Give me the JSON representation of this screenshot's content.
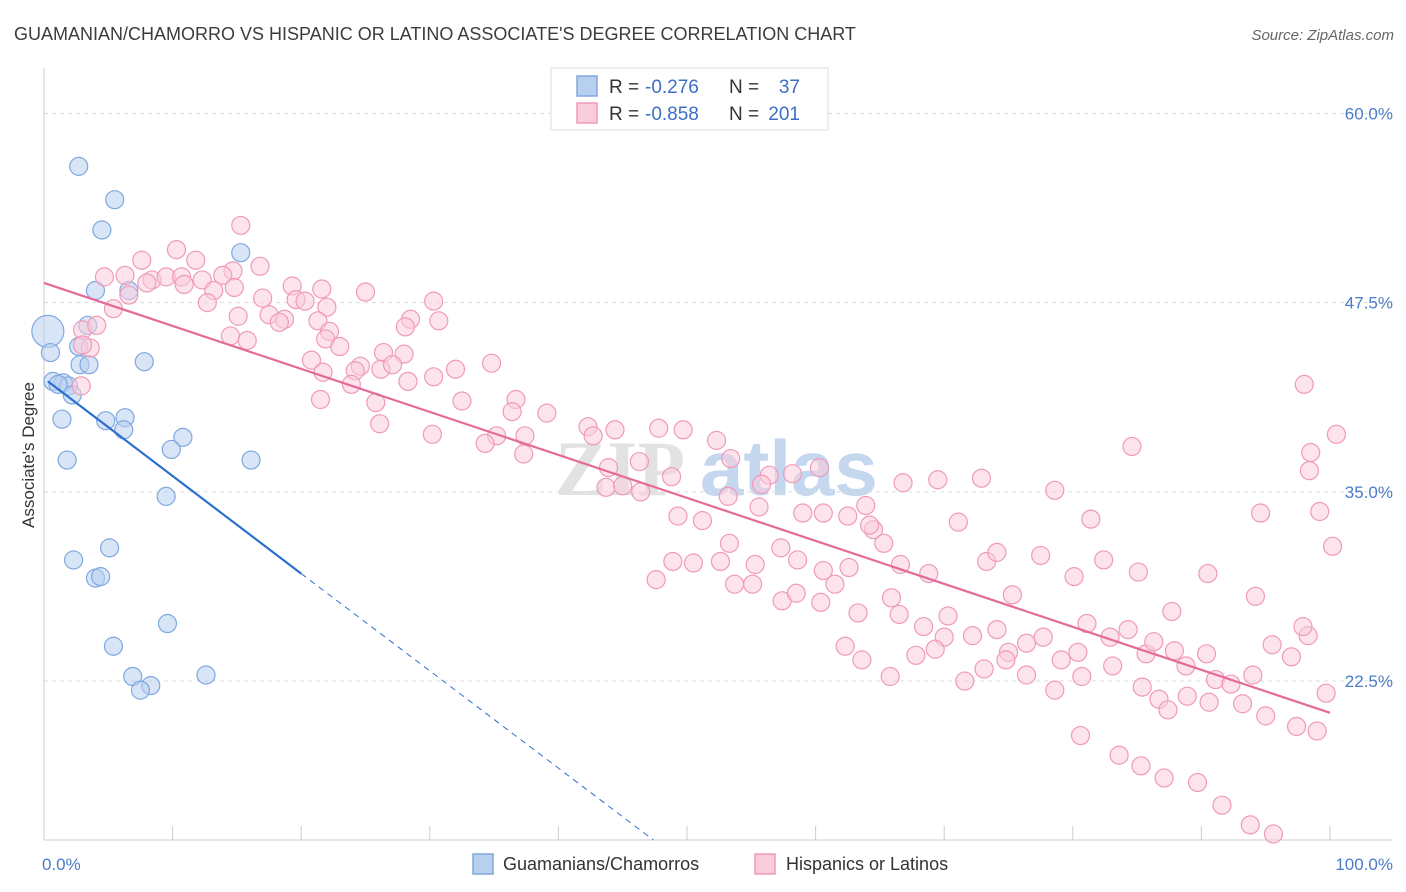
{
  "chart_data": {
    "type": "scatter",
    "title": "GUAMANIAN/CHAMORRO VS HISPANIC OR LATINO ASSOCIATE'S DEGREE CORRELATION CHART",
    "source": "Source: ZipAtlas.com",
    "watermark": [
      "ZIP",
      "atlas"
    ],
    "ylabel": "Associate's Degree",
    "xlim": [
      0,
      100
    ],
    "ylim": [
      12,
      63
    ],
    "x_tick_labels": [
      "0.0%",
      "100.0%"
    ],
    "y_ticks": [
      {
        "value": 60.0,
        "label": "60.0%"
      },
      {
        "value": 47.5,
        "label": "47.5%"
      },
      {
        "value": 35.0,
        "label": "35.0%"
      },
      {
        "value": 22.5,
        "label": "22.5%"
      }
    ],
    "legend": {
      "r_label": "R =",
      "n_label": "N =",
      "entries": [
        {
          "r": "-0.276",
          "n": "37"
        },
        {
          "r": "-0.858",
          "n": "201"
        }
      ]
    },
    "series": [
      {
        "name": "Guamanians/Chamorros",
        "color": "#7fa8e0",
        "fill": "#b8d0f0",
        "line_color": "#2d6ecf",
        "trend": {
          "x0": 0.3,
          "y0": 42.3,
          "x1": 20,
          "y1": 29.6,
          "dash_x1": 50.5,
          "dash_y1": 10.0
        },
        "points": [
          [
            0.3,
            45.6
          ],
          [
            0.5,
            44.2
          ],
          [
            2.7,
            56.5
          ],
          [
            5.5,
            54.3
          ],
          [
            4.5,
            52.3
          ],
          [
            15.3,
            50.8
          ],
          [
            4.0,
            48.3
          ],
          [
            6.6,
            48.3
          ],
          [
            3.4,
            46.0
          ],
          [
            7.8,
            43.6
          ],
          [
            2.7,
            44.6
          ],
          [
            2.8,
            43.4
          ],
          [
            3.5,
            43.4
          ],
          [
            0.7,
            42.3
          ],
          [
            1.5,
            42.2
          ],
          [
            1.9,
            42.0
          ],
          [
            2.2,
            41.4
          ],
          [
            1.1,
            42.1
          ],
          [
            1.4,
            39.8
          ],
          [
            4.8,
            39.7
          ],
          [
            6.3,
            39.9
          ],
          [
            6.2,
            39.1
          ],
          [
            10.8,
            38.6
          ],
          [
            9.9,
            37.8
          ],
          [
            1.8,
            37.1
          ],
          [
            16.1,
            37.1
          ],
          [
            9.5,
            34.7
          ],
          [
            5.1,
            31.3
          ],
          [
            2.3,
            30.5
          ],
          [
            4.0,
            29.3
          ],
          [
            4.4,
            29.4
          ],
          [
            9.6,
            26.3
          ],
          [
            5.4,
            24.8
          ],
          [
            6.9,
            22.8
          ],
          [
            8.3,
            22.2
          ],
          [
            7.5,
            21.9
          ],
          [
            12.6,
            22.9
          ]
        ]
      },
      {
        "name": "Hispanics or Latinos",
        "color": "#f09ab8",
        "fill": "#f9ccdc",
        "line_color": "#e36a99",
        "trend": {
          "x0": 0,
          "y0": 48.8,
          "x1": 100,
          "y1": 20.4
        },
        "points": [
          [
            15.3,
            52.6
          ],
          [
            10.3,
            51.0
          ],
          [
            11.8,
            50.3
          ],
          [
            7.6,
            50.3
          ],
          [
            14.7,
            49.6
          ],
          [
            16.8,
            49.9
          ],
          [
            4.7,
            49.2
          ],
          [
            6.3,
            49.3
          ],
          [
            8.4,
            49.0
          ],
          [
            9.5,
            49.2
          ],
          [
            10.7,
            49.2
          ],
          [
            12.3,
            49.0
          ],
          [
            13.9,
            49.3
          ],
          [
            8.0,
            48.8
          ],
          [
            10.9,
            48.7
          ],
          [
            13.2,
            48.3
          ],
          [
            14.8,
            48.5
          ],
          [
            19.3,
            48.6
          ],
          [
            21.6,
            48.4
          ],
          [
            6.6,
            48.0
          ],
          [
            12.7,
            47.5
          ],
          [
            17.0,
            47.8
          ],
          [
            19.6,
            47.7
          ],
          [
            20.3,
            47.6
          ],
          [
            25.0,
            48.2
          ],
          [
            22.0,
            47.2
          ],
          [
            30.3,
            47.6
          ],
          [
            5.4,
            47.1
          ],
          [
            15.1,
            46.6
          ],
          [
            17.5,
            46.7
          ],
          [
            18.7,
            46.4
          ],
          [
            21.3,
            46.3
          ],
          [
            28.5,
            46.4
          ],
          [
            30.7,
            46.3
          ],
          [
            3.0,
            45.7
          ],
          [
            4.1,
            46.0
          ],
          [
            18.3,
            46.2
          ],
          [
            22.2,
            45.6
          ],
          [
            28.1,
            45.9
          ],
          [
            3.6,
            44.5
          ],
          [
            14.5,
            45.3
          ],
          [
            15.8,
            45.0
          ],
          [
            21.9,
            45.1
          ],
          [
            23.0,
            44.6
          ],
          [
            26.4,
            44.2
          ],
          [
            3.0,
            44.7
          ],
          [
            28.0,
            44.1
          ],
          [
            24.6,
            43.3
          ],
          [
            26.2,
            43.1
          ],
          [
            27.1,
            43.4
          ],
          [
            20.8,
            43.7
          ],
          [
            21.7,
            42.9
          ],
          [
            24.2,
            43.0
          ],
          [
            32.0,
            43.1
          ],
          [
            34.8,
            43.5
          ],
          [
            2.9,
            42.0
          ],
          [
            30.3,
            42.6
          ],
          [
            23.9,
            42.1
          ],
          [
            28.3,
            42.3
          ],
          [
            36.7,
            41.1
          ],
          [
            21.5,
            41.1
          ],
          [
            32.5,
            41.0
          ],
          [
            36.4,
            40.3
          ],
          [
            26.1,
            39.5
          ],
          [
            25.8,
            40.9
          ],
          [
            39.1,
            40.2
          ],
          [
            42.3,
            39.3
          ],
          [
            30.2,
            38.8
          ],
          [
            35.2,
            38.7
          ],
          [
            37.4,
            38.7
          ],
          [
            42.7,
            38.7
          ],
          [
            44.4,
            39.1
          ],
          [
            47.8,
            39.2
          ],
          [
            49.7,
            39.1
          ],
          [
            52.3,
            38.4
          ],
          [
            34.3,
            38.2
          ],
          [
            37.3,
            37.5
          ],
          [
            43.9,
            36.6
          ],
          [
            48.8,
            36.0
          ],
          [
            53.4,
            37.2
          ],
          [
            46.3,
            37.0
          ],
          [
            53.2,
            34.7
          ],
          [
            56.4,
            36.1
          ],
          [
            43.7,
            35.3
          ],
          [
            45.0,
            35.4
          ],
          [
            46.4,
            35.0
          ],
          [
            49.3,
            33.4
          ],
          [
            51.2,
            33.1
          ],
          [
            55.6,
            34.0
          ],
          [
            59.0,
            33.6
          ],
          [
            60.6,
            33.6
          ],
          [
            62.5,
            33.4
          ],
          [
            64.5,
            32.5
          ],
          [
            66.6,
            30.2
          ],
          [
            64.2,
            32.8
          ],
          [
            65.3,
            31.6
          ],
          [
            53.3,
            31.6
          ],
          [
            50.5,
            30.3
          ],
          [
            52.6,
            30.4
          ],
          [
            55.3,
            30.2
          ],
          [
            57.3,
            31.3
          ],
          [
            58.6,
            30.5
          ],
          [
            60.6,
            29.8
          ],
          [
            62.6,
            30.0
          ],
          [
            47.6,
            29.2
          ],
          [
            48.9,
            30.4
          ],
          [
            53.7,
            28.9
          ],
          [
            55.1,
            28.9
          ],
          [
            57.4,
            27.8
          ],
          [
            58.5,
            28.3
          ],
          [
            60.4,
            27.7
          ],
          [
            61.5,
            28.9
          ],
          [
            63.3,
            27.0
          ],
          [
            65.9,
            28.0
          ],
          [
            66.5,
            26.9
          ],
          [
            68.4,
            26.1
          ],
          [
            70.0,
            25.4
          ],
          [
            72.2,
            25.5
          ],
          [
            74.1,
            25.9
          ],
          [
            75.0,
            24.4
          ],
          [
            76.4,
            25.0
          ],
          [
            77.7,
            25.4
          ],
          [
            79.1,
            23.9
          ],
          [
            80.4,
            24.4
          ],
          [
            81.1,
            26.3
          ],
          [
            82.9,
            25.4
          ],
          [
            84.3,
            25.9
          ],
          [
            85.7,
            24.3
          ],
          [
            86.3,
            25.1
          ],
          [
            87.9,
            24.5
          ],
          [
            88.8,
            23.5
          ],
          [
            90.4,
            24.3
          ],
          [
            91.1,
            22.6
          ],
          [
            92.3,
            22.3
          ],
          [
            94.0,
            22.9
          ],
          [
            95.5,
            24.9
          ],
          [
            97.0,
            24.1
          ],
          [
            98.3,
            25.5
          ],
          [
            99.7,
            21.7
          ],
          [
            62.3,
            24.8
          ],
          [
            63.6,
            23.9
          ],
          [
            65.8,
            22.8
          ],
          [
            67.8,
            24.2
          ],
          [
            69.3,
            24.6
          ],
          [
            71.6,
            22.5
          ],
          [
            73.1,
            23.3
          ],
          [
            74.8,
            23.9
          ],
          [
            76.4,
            22.9
          ],
          [
            78.6,
            21.9
          ],
          [
            80.7,
            22.8
          ],
          [
            83.1,
            23.5
          ],
          [
            85.4,
            22.1
          ],
          [
            86.7,
            21.3
          ],
          [
            87.4,
            20.6
          ],
          [
            88.9,
            21.5
          ],
          [
            90.6,
            21.1
          ],
          [
            93.2,
            21.0
          ],
          [
            95.0,
            20.2
          ],
          [
            97.4,
            19.5
          ],
          [
            99.0,
            19.2
          ],
          [
            80.6,
            18.9
          ],
          [
            83.6,
            17.6
          ],
          [
            85.3,
            16.9
          ],
          [
            87.1,
            16.1
          ],
          [
            89.7,
            15.8
          ],
          [
            91.6,
            14.3
          ],
          [
            93.8,
            13.0
          ],
          [
            95.6,
            12.4
          ],
          [
            68.8,
            29.6
          ],
          [
            73.3,
            30.4
          ],
          [
            75.3,
            28.2
          ],
          [
            77.5,
            30.8
          ],
          [
            80.1,
            29.4
          ],
          [
            82.4,
            30.5
          ],
          [
            85.1,
            29.7
          ],
          [
            87.7,
            27.1
          ],
          [
            90.5,
            29.6
          ],
          [
            94.2,
            28.1
          ],
          [
            97.9,
            26.1
          ],
          [
            100.2,
            31.4
          ],
          [
            94.6,
            33.6
          ],
          [
            99.2,
            33.7
          ],
          [
            98.4,
            36.4
          ],
          [
            98.5,
            37.6
          ],
          [
            100.5,
            38.8
          ],
          [
            98.0,
            42.1
          ],
          [
            84.6,
            38.0
          ],
          [
            63.9,
            34.1
          ],
          [
            66.8,
            35.6
          ],
          [
            69.5,
            35.8
          ],
          [
            72.9,
            35.9
          ],
          [
            78.6,
            35.1
          ],
          [
            81.4,
            33.2
          ],
          [
            58.2,
            36.2
          ],
          [
            55.8,
            35.5
          ],
          [
            60.3,
            36.6
          ],
          [
            71.1,
            33.0
          ],
          [
            74.1,
            31.0
          ],
          [
            70.3,
            26.8
          ]
        ]
      }
    ]
  }
}
